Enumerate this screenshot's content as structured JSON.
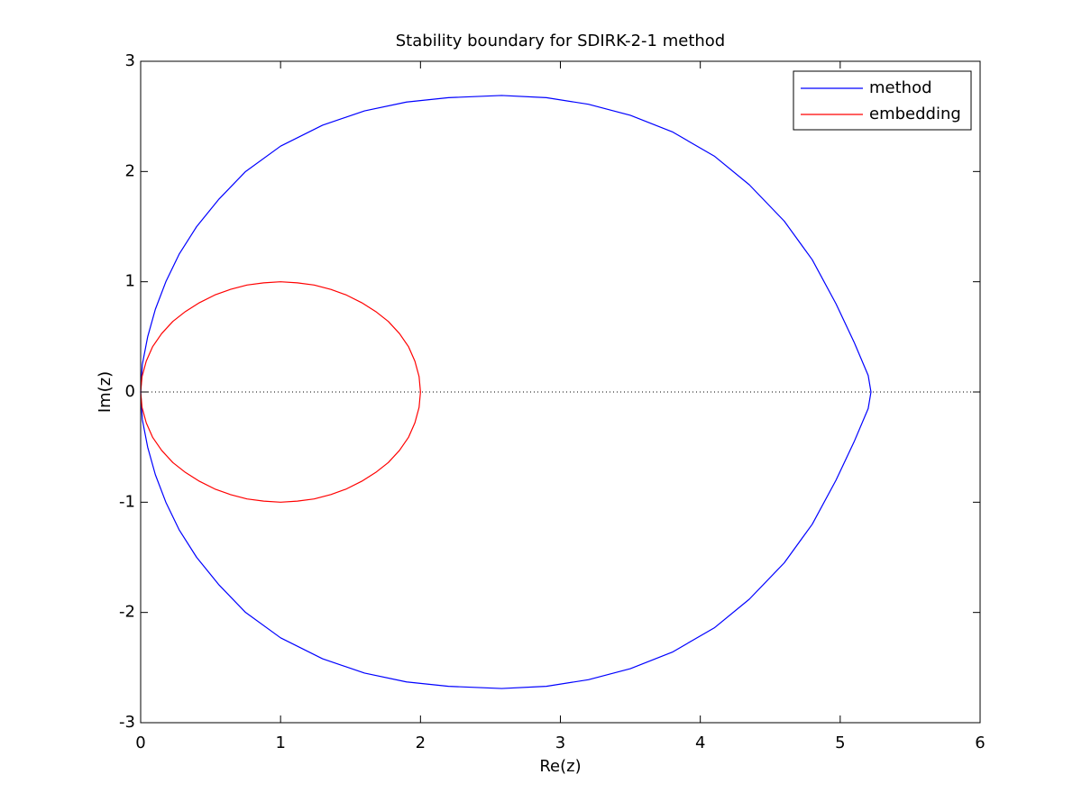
{
  "chart_data": {
    "type": "line",
    "title": "Stability boundary for SDIRK-2-1 method",
    "xlabel": "Re(z)",
    "ylabel": "Im(z)",
    "xlim": [
      0,
      6
    ],
    "ylim": [
      -3,
      3
    ],
    "xticks": [
      0,
      1,
      2,
      3,
      4,
      5,
      6
    ],
    "yticks": [
      -3,
      -2,
      -1,
      0,
      1,
      2,
      3
    ],
    "grid": false,
    "legend_position": "top-right",
    "reference_line": {
      "y": 0,
      "style": "dotted"
    },
    "series": [
      {
        "name": "method",
        "color": "#0000ff",
        "points": [
          [
            0.0,
            0.0
          ],
          [
            0.012,
            0.25
          ],
          [
            0.05,
            0.5
          ],
          [
            0.105,
            0.75
          ],
          [
            0.18,
            1.0
          ],
          [
            0.275,
            1.25
          ],
          [
            0.4,
            1.5
          ],
          [
            0.56,
            1.75
          ],
          [
            0.75,
            2.0
          ],
          [
            1.0,
            2.23
          ],
          [
            1.3,
            2.42
          ],
          [
            1.6,
            2.55
          ],
          [
            1.9,
            2.63
          ],
          [
            2.2,
            2.67
          ],
          [
            2.58,
            2.69
          ],
          [
            2.9,
            2.67
          ],
          [
            3.2,
            2.61
          ],
          [
            3.5,
            2.51
          ],
          [
            3.8,
            2.36
          ],
          [
            4.1,
            2.14
          ],
          [
            4.35,
            1.88
          ],
          [
            4.6,
            1.55
          ],
          [
            4.8,
            1.2
          ],
          [
            4.97,
            0.8
          ],
          [
            5.1,
            0.45
          ],
          [
            5.2,
            0.15
          ],
          [
            5.22,
            0.0
          ],
          [
            5.2,
            -0.15
          ],
          [
            5.1,
            -0.45
          ],
          [
            4.97,
            -0.8
          ],
          [
            4.8,
            -1.2
          ],
          [
            4.6,
            -1.55
          ],
          [
            4.35,
            -1.88
          ],
          [
            4.1,
            -2.14
          ],
          [
            3.8,
            -2.36
          ],
          [
            3.5,
            -2.51
          ],
          [
            3.2,
            -2.61
          ],
          [
            2.9,
            -2.67
          ],
          [
            2.58,
            -2.69
          ],
          [
            2.2,
            -2.67
          ],
          [
            1.9,
            -2.63
          ],
          [
            1.6,
            -2.55
          ],
          [
            1.3,
            -2.42
          ],
          [
            1.0,
            -2.23
          ],
          [
            0.75,
            -2.0
          ],
          [
            0.56,
            -1.75
          ],
          [
            0.4,
            -1.5
          ],
          [
            0.275,
            -1.25
          ],
          [
            0.18,
            -1.0
          ],
          [
            0.105,
            -0.75
          ],
          [
            0.05,
            -0.5
          ],
          [
            0.012,
            -0.25
          ],
          [
            0.0,
            0.0
          ]
        ]
      },
      {
        "name": "embedding",
        "color": "#ff0000",
        "points": [
          [
            0.0,
            0.0
          ],
          [
            0.01,
            0.14
          ],
          [
            0.04,
            0.28
          ],
          [
            0.085,
            0.41
          ],
          [
            0.15,
            0.53
          ],
          [
            0.23,
            0.64
          ],
          [
            0.32,
            0.73
          ],
          [
            0.42,
            0.81
          ],
          [
            0.53,
            0.88
          ],
          [
            0.64,
            0.93
          ],
          [
            0.76,
            0.97
          ],
          [
            0.88,
            0.99
          ],
          [
            1.0,
            1.0
          ],
          [
            1.12,
            0.99
          ],
          [
            1.24,
            0.97
          ],
          [
            1.36,
            0.93
          ],
          [
            1.47,
            0.88
          ],
          [
            1.58,
            0.81
          ],
          [
            1.68,
            0.73
          ],
          [
            1.77,
            0.64
          ],
          [
            1.85,
            0.53
          ],
          [
            1.915,
            0.41
          ],
          [
            1.96,
            0.28
          ],
          [
            1.99,
            0.14
          ],
          [
            2.0,
            0.0
          ],
          [
            1.99,
            -0.14
          ],
          [
            1.96,
            -0.28
          ],
          [
            1.915,
            -0.41
          ],
          [
            1.85,
            -0.53
          ],
          [
            1.77,
            -0.64
          ],
          [
            1.68,
            -0.73
          ],
          [
            1.58,
            -0.81
          ],
          [
            1.47,
            -0.88
          ],
          [
            1.36,
            -0.93
          ],
          [
            1.24,
            -0.97
          ],
          [
            1.12,
            -0.99
          ],
          [
            1.0,
            -1.0
          ],
          [
            0.88,
            -0.99
          ],
          [
            0.76,
            -0.97
          ],
          [
            0.64,
            -0.93
          ],
          [
            0.53,
            -0.88
          ],
          [
            0.42,
            -0.81
          ],
          [
            0.32,
            -0.73
          ],
          [
            0.23,
            -0.64
          ],
          [
            0.15,
            -0.53
          ],
          [
            0.085,
            -0.41
          ],
          [
            0.04,
            -0.28
          ],
          [
            0.01,
            -0.14
          ],
          [
            0.0,
            0.0
          ]
        ]
      }
    ]
  }
}
